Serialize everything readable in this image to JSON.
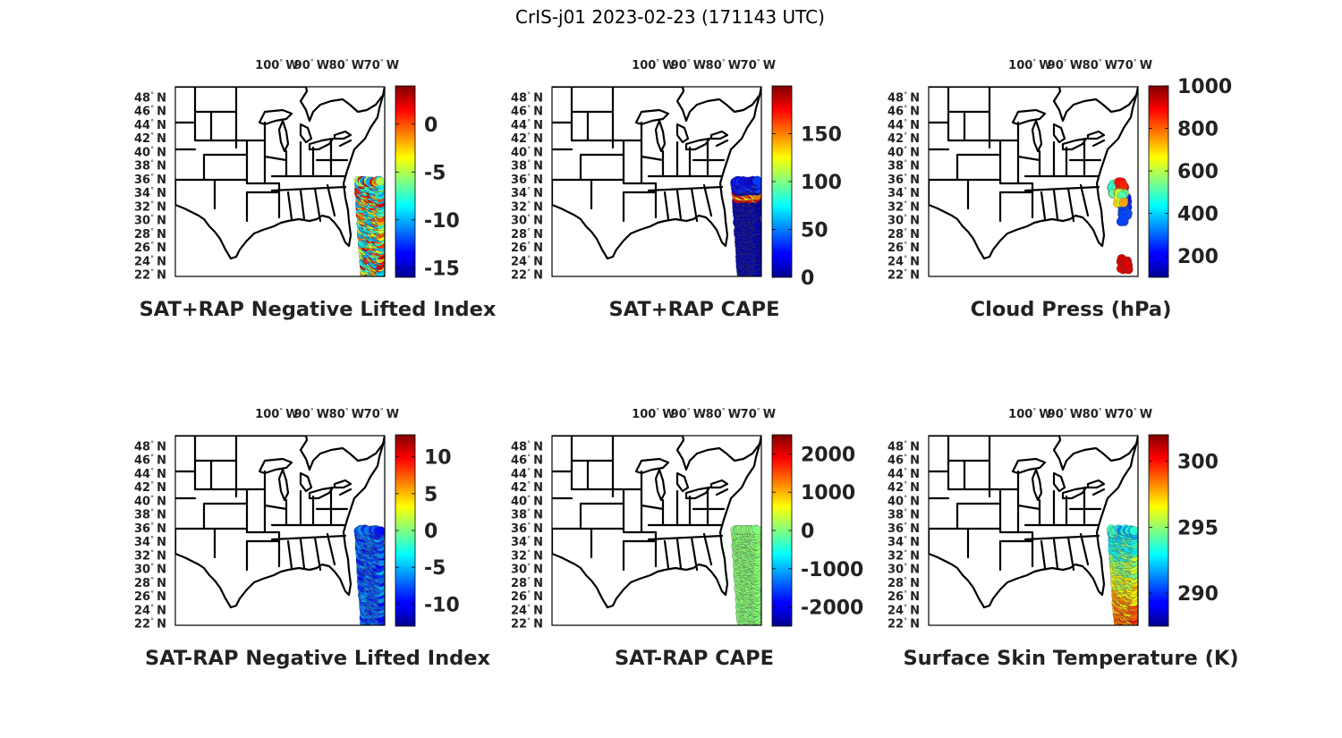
{
  "figure": {
    "suptitle": "CrIS-j01 2023-02-23 (171143 UTC)"
  },
  "axes": {
    "lon_labels": [
      "100",
      "90",
      "80",
      "70"
    ],
    "lon_values": [
      -100,
      -90,
      -80,
      -70
    ],
    "lon_hemisphere": "W",
    "lat_labels": [
      "48",
      "46",
      "44",
      "42",
      "40",
      "38",
      "36",
      "34",
      "32",
      "30",
      "28",
      "26",
      "24",
      "22"
    ],
    "lat_values": [
      48,
      46,
      44,
      42,
      40,
      38,
      36,
      34,
      32,
      30,
      28,
      26,
      24,
      22
    ],
    "lat_hemisphere": "N",
    "degree_symbol": "°",
    "lon_range": [
      -126,
      -66
    ],
    "lat_range": [
      21.7,
      49.5
    ]
  },
  "colormap": "jet",
  "panels": [
    {
      "title": "SAT+RAP Negative Lifted Index",
      "colorbar": {
        "ticks": [
          "0",
          "-5",
          "-10",
          "-15"
        ],
        "tick_values": [
          0,
          -5,
          -10,
          -15
        ],
        "range": [
          -16,
          4
        ]
      },
      "swath": {
        "shape": "full",
        "lon_range": [
          -73.5,
          -67
        ],
        "lat_range": [
          22,
          35.8
        ],
        "pattern": "mixed-high"
      }
    },
    {
      "title": "SAT+RAP CAPE",
      "colorbar": {
        "ticks": [
          "150",
          "100",
          "50",
          "0"
        ],
        "tick_values": [
          150,
          100,
          50,
          0
        ],
        "range": [
          0,
          200
        ]
      },
      "swath": {
        "shape": "full",
        "lon_range": [
          -73.5,
          -67
        ],
        "lat_range": [
          22,
          35.8
        ],
        "pattern": "mostly-low-banded"
      }
    },
    {
      "title": "Cloud Press (hPa)",
      "colorbar": {
        "ticks": [
          "1000",
          "800",
          "600",
          "400",
          "200"
        ],
        "tick_values": [
          1000,
          800,
          600,
          400,
          200
        ],
        "range": [
          100,
          1000
        ]
      },
      "swath": {
        "shape": "sparse",
        "pattern": "clusters"
      }
    },
    {
      "title": "SAT-RAP Negative Lifted Index",
      "colorbar": {
        "ticks": [
          "10",
          "5",
          "0",
          "-5",
          "-10"
        ],
        "tick_values": [
          10,
          5,
          0,
          -5,
          -10
        ],
        "range": [
          -13,
          13
        ]
      },
      "swath": {
        "shape": "full",
        "lon_range": [
          -73.5,
          -67
        ],
        "lat_range": [
          22,
          35.8
        ],
        "pattern": "mostly-low"
      }
    },
    {
      "title": "SAT-RAP CAPE",
      "colorbar": {
        "ticks": [
          "2000",
          "1000",
          "0",
          "-1000",
          "-2000"
        ],
        "tick_values": [
          2000,
          1000,
          0,
          -1000,
          -2000
        ],
        "range": [
          -2500,
          2500
        ]
      },
      "swath": {
        "shape": "full",
        "lon_range": [
          -73.5,
          -67
        ],
        "lat_range": [
          22,
          35.8
        ],
        "pattern": "uniform-zero"
      }
    },
    {
      "title": "Surface Skin Temperature (K)",
      "colorbar": {
        "ticks": [
          "300",
          "295",
          "290"
        ],
        "tick_values": [
          300,
          295,
          290
        ],
        "range": [
          287.5,
          302
        ]
      },
      "swath": {
        "shape": "full",
        "lon_range": [
          -73.5,
          -67
        ],
        "lat_range": [
          22,
          35.8
        ],
        "pattern": "gradient-warm-south"
      }
    }
  ]
}
